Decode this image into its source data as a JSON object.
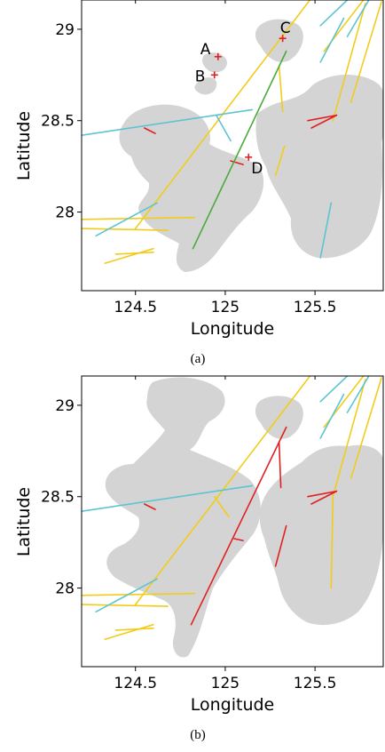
{
  "chart_data": [
    {
      "type": "map",
      "panel_label": "(a)",
      "xlabel": "Longitude",
      "ylabel": "Latitude",
      "xlim": [
        124.2,
        125.88
      ],
      "ylim": [
        27.57,
        29.16
      ],
      "xticks": [
        124.5,
        125,
        125.5
      ],
      "xtick_labels": [
        "124.5",
        "125",
        "125.5"
      ],
      "yticks": [
        28,
        28.5,
        29
      ],
      "ytick_labels": [
        "28",
        "28.5",
        "29"
      ],
      "land_color": "#d4d4d4",
      "points": [
        {
          "label": "A",
          "lon": 124.96,
          "lat": 28.85
        },
        {
          "label": "B",
          "lon": 124.94,
          "lat": 28.75
        },
        {
          "label": "C",
          "lon": 125.32,
          "lat": 28.95
        },
        {
          "label": "D",
          "lon": 125.13,
          "lat": 28.3
        }
      ],
      "segments": [
        {
          "color": "yellow",
          "from": [
            124.5,
            27.91
          ],
          "to": [
            125.48,
            29.17
          ]
        },
        {
          "color": "yellow",
          "from": [
            124.2,
            27.96
          ],
          "to": [
            124.83,
            27.97
          ]
        },
        {
          "color": "yellow",
          "from": [
            124.2,
            27.91
          ],
          "to": [
            124.68,
            27.9
          ]
        },
        {
          "color": "yellow",
          "from": [
            124.33,
            27.72
          ],
          "to": [
            124.6,
            27.8
          ]
        },
        {
          "color": "yellow",
          "from": [
            124.39,
            27.77
          ],
          "to": [
            124.6,
            27.78
          ]
        },
        {
          "color": "yellow",
          "from": [
            125.28,
            28.2
          ],
          "to": [
            125.33,
            28.36
          ]
        },
        {
          "color": "yellow",
          "from": [
            125.3,
            28.8
          ],
          "to": [
            125.32,
            28.55
          ]
        },
        {
          "color": "yellow",
          "from": [
            125.6,
            28.5
          ],
          "to": [
            125.78,
            29.14
          ]
        },
        {
          "color": "yellow",
          "from": [
            125.7,
            28.6
          ],
          "to": [
            125.87,
            29.15
          ]
        },
        {
          "color": "yellow",
          "from": [
            125.55,
            28.88
          ],
          "to": [
            125.77,
            29.16
          ]
        },
        {
          "color": "cyan",
          "from": [
            124.28,
            27.87
          ],
          "to": [
            124.62,
            28.05
          ]
        },
        {
          "color": "cyan",
          "from": [
            124.2,
            28.42
          ],
          "to": [
            125.15,
            28.56
          ]
        },
        {
          "color": "cyan",
          "from": [
            124.95,
            28.53
          ],
          "to": [
            125.03,
            28.39
          ]
        },
        {
          "color": "cyan",
          "from": [
            125.53,
            27.75
          ],
          "to": [
            125.59,
            28.05
          ]
        },
        {
          "color": "cyan",
          "from": [
            125.53,
            29.02
          ],
          "to": [
            125.68,
            29.16
          ]
        },
        {
          "color": "cyan",
          "from": [
            125.53,
            28.82
          ],
          "to": [
            125.66,
            29.06
          ]
        },
        {
          "color": "cyan",
          "from": [
            125.68,
            28.96
          ],
          "to": [
            125.8,
            29.16
          ]
        },
        {
          "color": "red",
          "from": [
            124.55,
            28.46
          ],
          "to": [
            124.61,
            28.43
          ]
        },
        {
          "color": "red",
          "from": [
            125.48,
            28.46
          ],
          "to": [
            125.62,
            28.53
          ]
        },
        {
          "color": "red",
          "from": [
            125.46,
            28.5
          ],
          "to": [
            125.62,
            28.53
          ]
        },
        {
          "color": "red",
          "from": [
            125.03,
            28.28
          ],
          "to": [
            125.1,
            28.26
          ]
        },
        {
          "color": "green",
          "from": [
            124.82,
            27.8
          ],
          "to": [
            125.34,
            28.88
          ]
        }
      ]
    },
    {
      "type": "map",
      "panel_label": "(b)",
      "xlabel": "Longitude",
      "ylabel": "Latitude",
      "xlim": [
        124.2,
        125.88
      ],
      "ylim": [
        27.57,
        29.16
      ],
      "xticks": [
        124.5,
        125,
        125.5
      ],
      "xtick_labels": [
        "124.5",
        "125",
        "125.5"
      ],
      "yticks": [
        28,
        28.5,
        29
      ],
      "ytick_labels": [
        "28",
        "28.5",
        "29"
      ],
      "land_color": "#d4d4d4",
      "points": [],
      "segments": [
        {
          "color": "yellow",
          "from": [
            124.5,
            27.91
          ],
          "to": [
            125.48,
            29.17
          ]
        },
        {
          "color": "yellow",
          "from": [
            124.2,
            27.96
          ],
          "to": [
            124.83,
            27.97
          ]
        },
        {
          "color": "yellow",
          "from": [
            124.2,
            27.91
          ],
          "to": [
            124.68,
            27.9
          ]
        },
        {
          "color": "yellow",
          "from": [
            124.33,
            27.72
          ],
          "to": [
            124.6,
            27.8
          ]
        },
        {
          "color": "yellow",
          "from": [
            124.39,
            27.77
          ],
          "to": [
            124.6,
            27.78
          ]
        },
        {
          "color": "yellow",
          "from": [
            124.94,
            28.5
          ],
          "to": [
            125.02,
            28.39
          ]
        },
        {
          "color": "yellow",
          "from": [
            125.6,
            28.5
          ],
          "to": [
            125.78,
            29.14
          ]
        },
        {
          "color": "yellow",
          "from": [
            125.7,
            28.6
          ],
          "to": [
            125.87,
            29.15
          ]
        },
        {
          "color": "yellow",
          "from": [
            125.55,
            28.88
          ],
          "to": [
            125.77,
            29.16
          ]
        },
        {
          "color": "yellow",
          "from": [
            125.6,
            28.5
          ],
          "to": [
            125.59,
            28.0
          ]
        },
        {
          "color": "cyan",
          "from": [
            124.28,
            27.87
          ],
          "to": [
            124.62,
            28.05
          ]
        },
        {
          "color": "cyan",
          "from": [
            124.2,
            28.42
          ],
          "to": [
            125.15,
            28.56
          ]
        },
        {
          "color": "cyan",
          "from": [
            125.53,
            29.02
          ],
          "to": [
            125.68,
            29.16
          ]
        },
        {
          "color": "cyan",
          "from": [
            125.53,
            28.82
          ],
          "to": [
            125.66,
            29.06
          ]
        },
        {
          "color": "cyan",
          "from": [
            125.68,
            28.96
          ],
          "to": [
            125.8,
            29.16
          ]
        },
        {
          "color": "red",
          "from": [
            124.55,
            28.46
          ],
          "to": [
            124.61,
            28.43
          ]
        },
        {
          "color": "red",
          "from": [
            125.48,
            28.46
          ],
          "to": [
            125.62,
            28.53
          ]
        },
        {
          "color": "red",
          "from": [
            125.46,
            28.5
          ],
          "to": [
            125.62,
            28.53
          ]
        },
        {
          "color": "red",
          "from": [
            124.81,
            27.8
          ],
          "to": [
            125.34,
            28.88
          ]
        },
        {
          "color": "red",
          "from": [
            125.05,
            28.27
          ],
          "to": [
            125.1,
            28.26
          ]
        },
        {
          "color": "red",
          "from": [
            125.3,
            28.8
          ],
          "to": [
            125.31,
            28.55
          ]
        },
        {
          "color": "red",
          "from": [
            125.28,
            28.12
          ],
          "to": [
            125.34,
            28.34
          ]
        }
      ]
    }
  ],
  "colors": {
    "yellow": "#f2cc1b",
    "cyan": "#5cc4d2",
    "red": "#e02020",
    "green": "#4aaa3a",
    "marker": "#e02020"
  }
}
